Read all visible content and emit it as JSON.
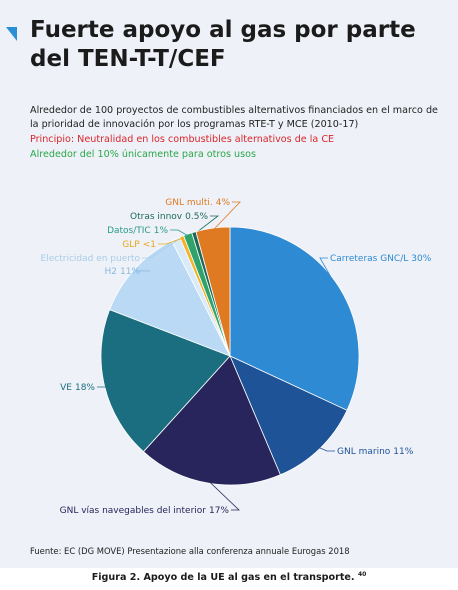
{
  "chart_data": {
    "type": "pie",
    "title": "Fuerte apoyo al gas por parte del TEN-T-T/CEF",
    "subtitle": "Alrededor de 100 proyectos de combustibles alternativos financiados en el marco de la prioridad de innovación por los programas RTE-T y MCE (2010-17)",
    "annotations": [
      "Principio: Neutralidad en los combustibles alternativos de la CE",
      "Alrededor del 10% únicamente para otros usos"
    ],
    "source": "Fuente: EC (DG MOVE) Presentazione alla conferenza annuale Eurogas 2018",
    "categories": [
      "Carreteras GNC/L",
      "GNL marino",
      "GNL vías navegables del interior",
      "VE",
      "H2",
      "Electricidad en puerto",
      "GLP",
      "Datos/TIC",
      "Otras innov",
      "GNL multi."
    ],
    "values": [
      30,
      11,
      17,
      18,
      11,
      1,
      0.5,
      1,
      0.5,
      4
    ],
    "value_labels": [
      "30%",
      "11%",
      "17%",
      "18%",
      "11%",
      null,
      "<1",
      "1%",
      "0.5%",
      "4%"
    ],
    "colors": [
      "#2e8ad3",
      "#1f5398",
      "#28255c",
      "#1b6e7f",
      "#b9d9f4",
      "#d9eaf8",
      "#f2b32a",
      "#2fa36b",
      "#1c6b5a",
      "#e07a22"
    ],
    "label_colors": [
      "#2e8ad3",
      "#1f5398",
      "#28255c",
      "#1b6e7f",
      "#8ab9e0",
      "#a9cde9",
      "#e9a81a",
      "#2a9a8a",
      "#1c6b5a",
      "#e07a22"
    ]
  },
  "caption": {
    "text": "Figura 2. Apoyo de la UE al gas en el transporte.",
    "ref": "40"
  }
}
